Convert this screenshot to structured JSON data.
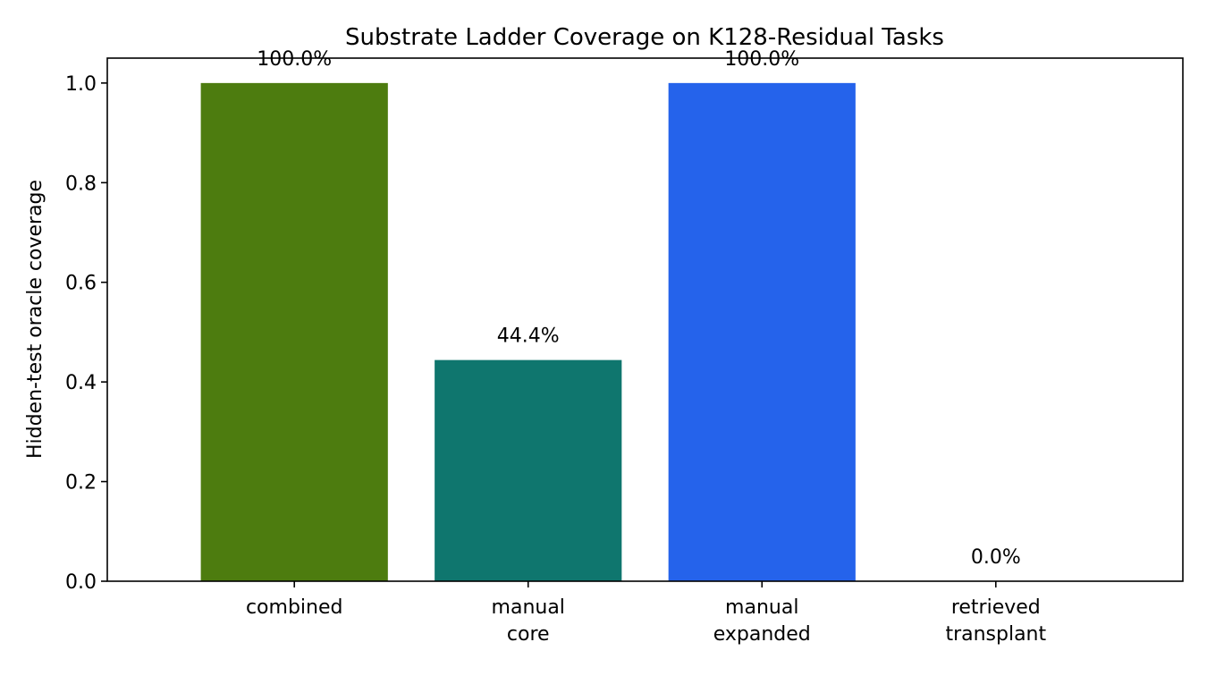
{
  "chart_data": {
    "type": "bar",
    "title": "Substrate Ladder Coverage on K128-Residual Tasks",
    "xlabel": "",
    "ylabel": "Hidden-test oracle coverage",
    "ylim": [
      0,
      1.05
    ],
    "yticks": [
      0.0,
      0.2,
      0.4,
      0.6,
      0.8,
      1.0
    ],
    "ytick_labels": [
      "0.0",
      "0.2",
      "0.4",
      "0.6",
      "0.8",
      "1.0"
    ],
    "grid": false,
    "categories": [
      [
        "combined"
      ],
      [
        "manual",
        "core"
      ],
      [
        "manual",
        "expanded"
      ],
      [
        "retrieved",
        "transplant"
      ]
    ],
    "values": [
      1.0,
      0.444,
      1.0,
      0.0
    ],
    "data_labels": [
      "100.0%",
      "44.4%",
      "100.0%",
      "0.0%"
    ],
    "colors": [
      "#4d7c0f",
      "#0f766e",
      "#2563eb",
      "#7c3aed"
    ]
  }
}
